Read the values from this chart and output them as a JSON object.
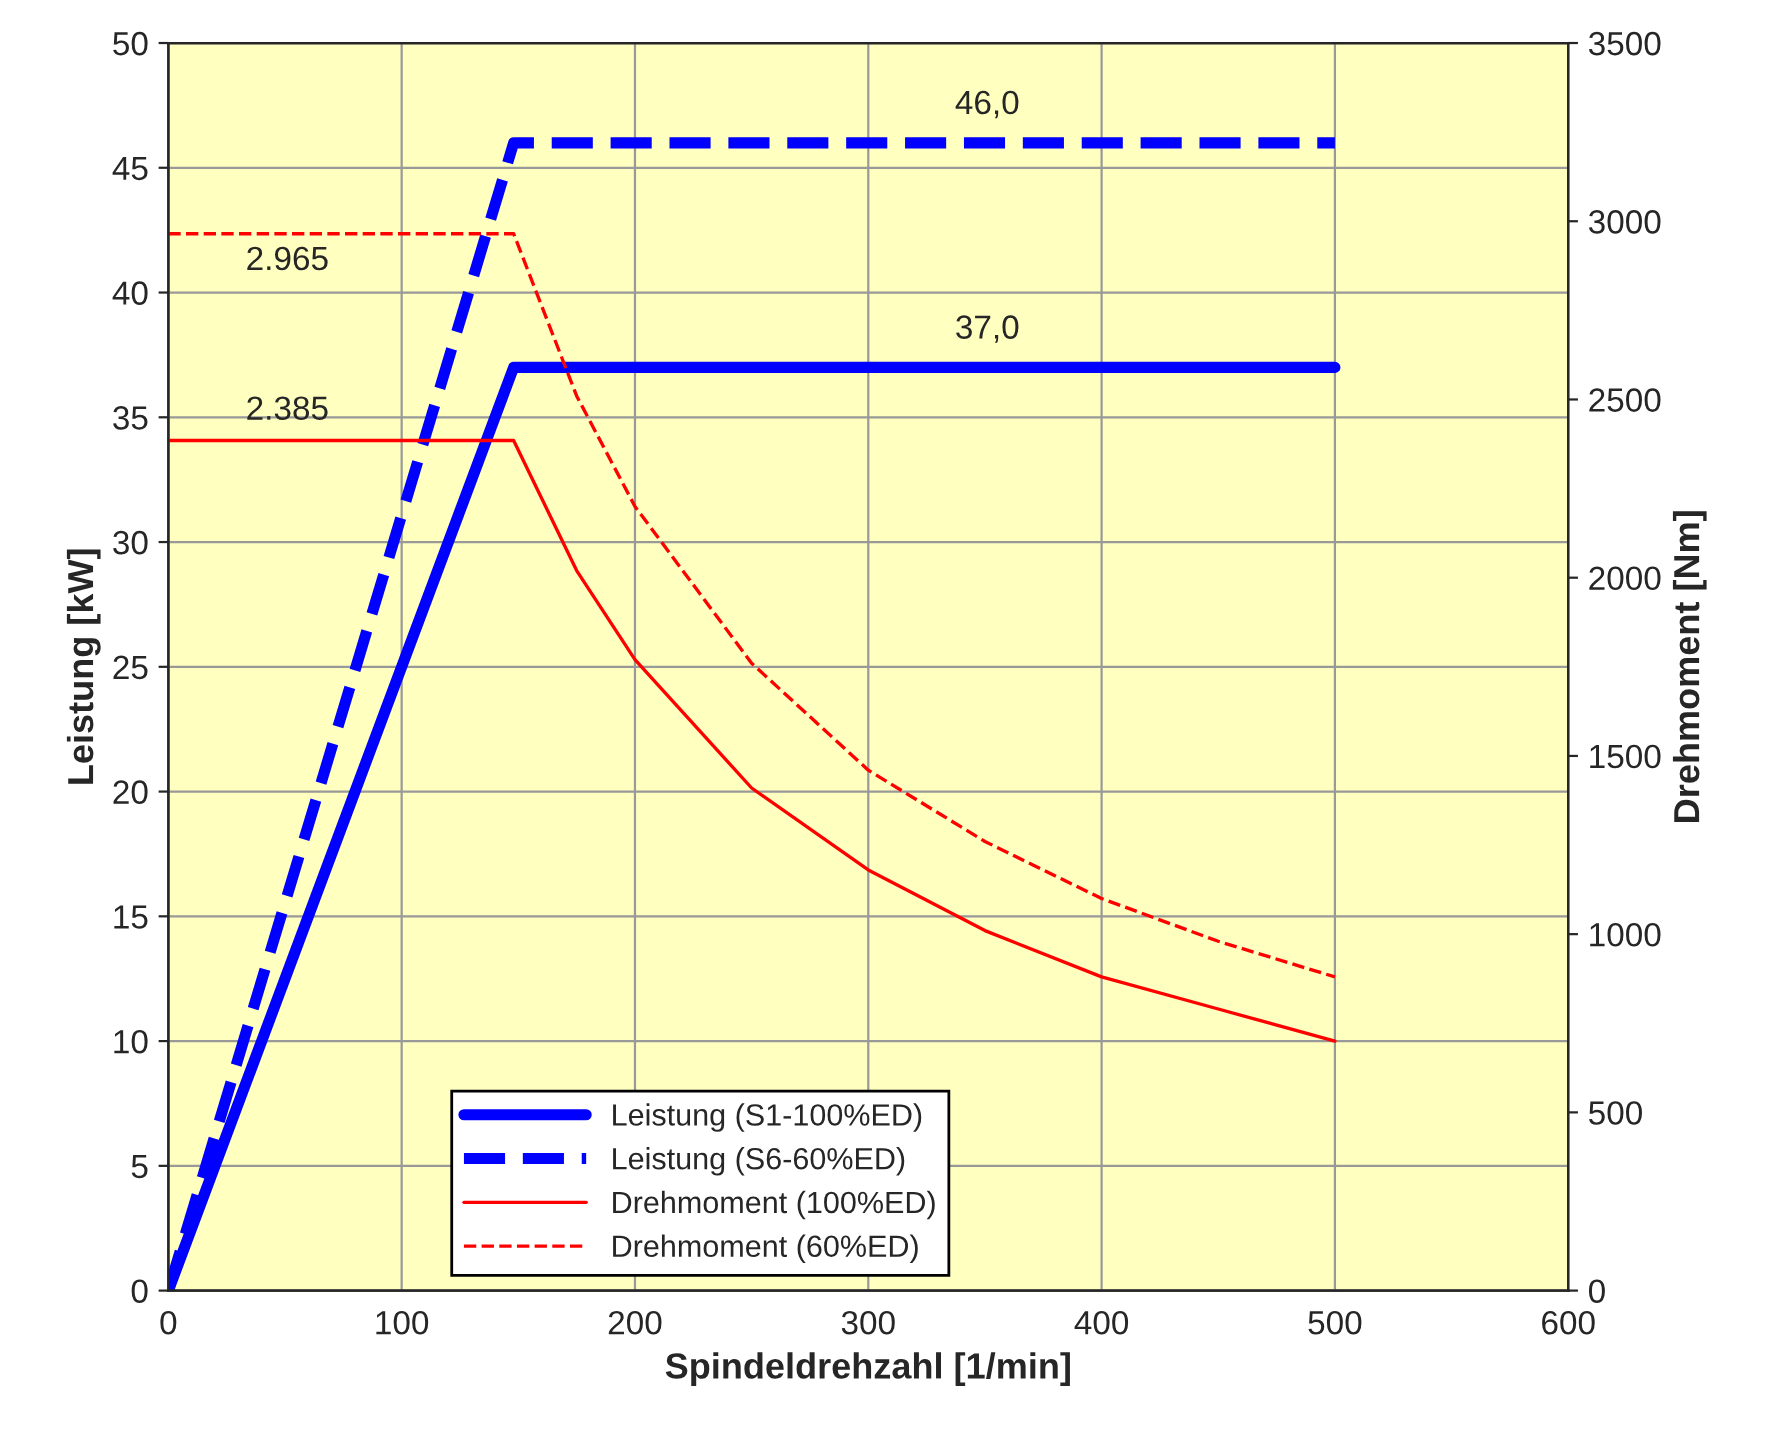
{
  "chart_data": {
    "type": "line",
    "xlabel": "Spindeldrehzahl [1/min]",
    "ylabel": "Leistung [kW]",
    "y2label": "Drehmoment [Nm]",
    "xlim": [
      0,
      600
    ],
    "xticks": [
      0,
      100,
      200,
      300,
      400,
      500,
      600
    ],
    "ylim": [
      0,
      50
    ],
    "yticks": [
      0,
      5,
      10,
      15,
      20,
      25,
      30,
      35,
      40,
      45,
      50
    ],
    "y2lim": [
      0,
      3500
    ],
    "y2ticks": [
      0,
      500,
      1000,
      1500,
      2000,
      2500,
      3000,
      3500
    ],
    "grid": true,
    "legend": "bottom",
    "series": [
      {
        "name": "Leistung (S1-100%ED)",
        "color": "#0000ff",
        "line_style": "solid",
        "x": [
          0,
          148,
          500
        ],
        "values": [
          0,
          37,
          37
        ]
      },
      {
        "name": "Leistung (S6-60%ED)",
        "color": "#0000ff",
        "line_style": "dashed",
        "x": [
          0,
          148,
          500
        ],
        "values": [
          0,
          46,
          46
        ]
      },
      {
        "name": "Drehmoment (100%ED)",
        "color": "#ff0000",
        "line_style": "solid",
        "axis": "y2",
        "x": [
          0,
          148,
          175,
          200,
          250,
          300,
          350,
          400,
          450,
          500
        ],
        "values": [
          2385,
          2385,
          2020,
          1770,
          1410,
          1180,
          1010,
          880,
          790,
          700
        ]
      },
      {
        "name": "Drehmoment (60%ED)",
        "color": "#ff0000",
        "line_style": "dashed",
        "axis": "y2",
        "x": [
          0,
          148,
          175,
          200,
          250,
          300,
          350,
          400,
          450,
          500
        ],
        "values": [
          2965,
          2965,
          2510,
          2200,
          1760,
          1460,
          1260,
          1100,
          980,
          880
        ]
      }
    ],
    "annotations": [
      "46,0",
      "37,0",
      "2.965",
      "2.385"
    ]
  }
}
